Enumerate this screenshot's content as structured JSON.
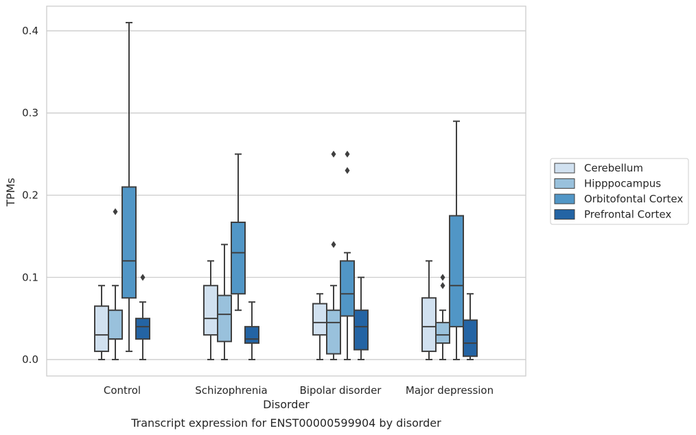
{
  "chart_data": {
    "type": "boxplot",
    "caption": "Transcript expression for ENST00000599904 by disorder",
    "xlabel": "Disorder",
    "ylabel": "TPMs",
    "ylim": [
      -0.02,
      0.43
    ],
    "yticks": [
      0.0,
      0.1,
      0.2,
      0.3,
      0.4
    ],
    "ytick_labels": [
      "0.0",
      "0.1",
      "0.2",
      "0.3",
      "0.4"
    ],
    "grid": "horizontal",
    "legend_position": "right, outside plot",
    "categories": [
      "Control",
      "Schizophrenia",
      "Bipolar disorder",
      "Major depression"
    ],
    "series": [
      {
        "name": "Cerebellum",
        "color": "#d1e1f0",
        "boxes": [
          {
            "whislo": 0.0,
            "q1": 0.01,
            "med": 0.03,
            "q3": 0.065,
            "whishi": 0.09,
            "fliers": []
          },
          {
            "whislo": 0.0,
            "q1": 0.03,
            "med": 0.05,
            "q3": 0.09,
            "whishi": 0.12,
            "fliers": []
          },
          {
            "whislo": 0.0,
            "q1": 0.03,
            "med": 0.045,
            "q3": 0.068,
            "whishi": 0.08,
            "fliers": []
          },
          {
            "whislo": 0.0,
            "q1": 0.01,
            "med": 0.04,
            "q3": 0.075,
            "whishi": 0.12,
            "fliers": []
          }
        ]
      },
      {
        "name": "Hipppocampus",
        "color": "#99c1dc",
        "boxes": [
          {
            "whislo": 0.0,
            "q1": 0.025,
            "med": 0.025,
            "q3": 0.06,
            "whishi": 0.09,
            "fliers": [
              0.18
            ]
          },
          {
            "whislo": 0.0,
            "q1": 0.022,
            "med": 0.055,
            "q3": 0.078,
            "whishi": 0.14,
            "fliers": []
          },
          {
            "whislo": 0.0,
            "q1": 0.007,
            "med": 0.045,
            "q3": 0.06,
            "whishi": 0.09,
            "fliers": [
              0.14,
              0.25
            ]
          },
          {
            "whislo": 0.0,
            "q1": 0.02,
            "med": 0.03,
            "q3": 0.045,
            "whishi": 0.06,
            "fliers": [
              0.09,
              0.1
            ]
          }
        ]
      },
      {
        "name": "Orbitofontal Cortex",
        "color": "#5196c6",
        "boxes": [
          {
            "whislo": 0.01,
            "q1": 0.075,
            "med": 0.12,
            "q3": 0.21,
            "whishi": 0.41,
            "fliers": []
          },
          {
            "whislo": 0.06,
            "q1": 0.08,
            "med": 0.13,
            "q3": 0.167,
            "whishi": 0.25,
            "fliers": []
          },
          {
            "whislo": 0.0,
            "q1": 0.053,
            "med": 0.08,
            "q3": 0.12,
            "whishi": 0.13,
            "fliers": [
              0.23,
              0.25
            ]
          },
          {
            "whislo": 0.0,
            "q1": 0.04,
            "med": 0.09,
            "q3": 0.175,
            "whishi": 0.29,
            "fliers": []
          }
        ]
      },
      {
        "name": "Prefrontal Cortex",
        "color": "#2464a4",
        "boxes": [
          {
            "whislo": 0.0,
            "q1": 0.025,
            "med": 0.04,
            "q3": 0.05,
            "whishi": 0.07,
            "fliers": [
              0.1
            ]
          },
          {
            "whislo": 0.0,
            "q1": 0.02,
            "med": 0.025,
            "q3": 0.04,
            "whishi": 0.07,
            "fliers": []
          },
          {
            "whislo": 0.0,
            "q1": 0.012,
            "med": 0.04,
            "q3": 0.06,
            "whishi": 0.1,
            "fliers": []
          },
          {
            "whislo": 0.0,
            "q1": 0.004,
            "med": 0.02,
            "q3": 0.048,
            "whishi": 0.08,
            "fliers": []
          }
        ]
      }
    ]
  },
  "colors": {
    "line": "#3f3f3f",
    "grid": "#cccccc",
    "frame": "#cccccc"
  }
}
